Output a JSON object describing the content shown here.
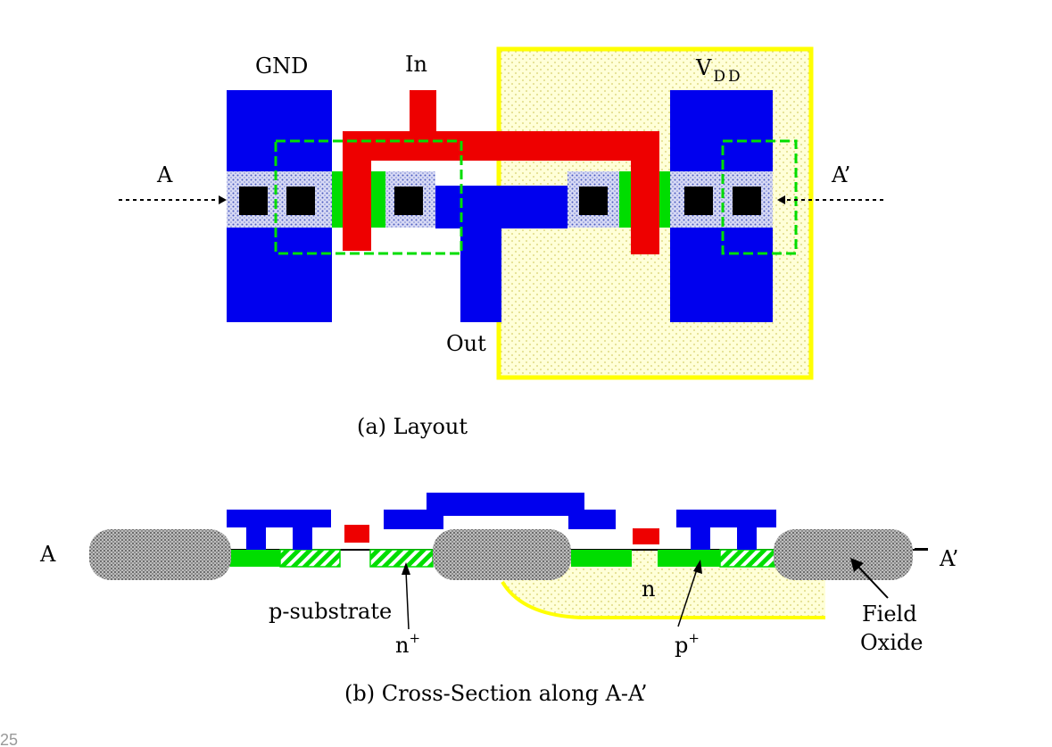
{
  "colors": {
    "metal": "#0000ee",
    "poly": "#ee0000",
    "diffusion": "#00dd00",
    "contact": "#000000",
    "nwell": "#ffff00",
    "field_oxide": "#999999"
  },
  "layout": {
    "gnd_label": "GND",
    "in_label": "In",
    "vdd_label": "V",
    "vdd_sub": "DD",
    "out_label": "Out",
    "a_label": "A",
    "a_prime_label": "A’",
    "caption": "(a) Layout"
  },
  "cross_section": {
    "a_label": "A",
    "a_prime_label": "A’",
    "n_label": "n",
    "p_substrate_label": "p-substrate",
    "n_plus_base": "n",
    "p_plus_base": "p",
    "plus_sup": "+",
    "field_label": "Field",
    "oxide_label": "Oxide",
    "caption": "(b) Cross-Section along A-A’"
  },
  "page_number": "25"
}
